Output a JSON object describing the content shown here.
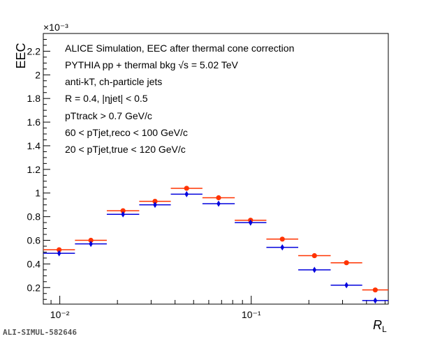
{
  "chart_data": {
    "type": "scatter",
    "x_scale": "log",
    "xlim": [
      0.0082,
      0.52
    ],
    "ylim": [
      6e-05,
      0.00235
    ],
    "exponent_label": "×10⁻³",
    "xlabel": "R",
    "xlabel_sub": "L",
    "ylabel": "EEC",
    "yticks": [
      0.0002,
      0.0004,
      0.0006,
      0.0008,
      0.001,
      0.0012,
      0.0014,
      0.0016,
      0.0018,
      0.002,
      0.0022
    ],
    "ytick_labels": [
      "0.2",
      "0.4",
      "0.6",
      "0.8",
      "1",
      "1.2",
      "1.4",
      "1.6",
      "1.8",
      "2",
      "2.2"
    ],
    "xticks": [
      0.01,
      0.1
    ],
    "xtick_labels": [
      "10⁻²",
      "10⁻¹"
    ],
    "grid": false,
    "bin_edges": [
      0.0082,
      0.012,
      0.0176,
      0.026,
      0.038,
      0.0556,
      0.082,
      0.12,
      0.176,
      0.26,
      0.38,
      0.52
    ],
    "series": [
      {
        "color": "#ff3300",
        "marker": "circle",
        "values": [
          0.00052,
          0.0006,
          0.00085,
          0.00093,
          0.00104,
          0.00096,
          0.00077,
          0.00061,
          0.00047,
          0.00041,
          0.00018
        ]
      },
      {
        "color": "#0000dd",
        "marker": "diamond",
        "values": [
          0.00049,
          0.00057,
          0.00082,
          0.0009,
          0.00099,
          0.00091,
          0.00075,
          0.00054,
          0.00035,
          0.00022,
          9e-05
        ]
      }
    ],
    "annotations": [
      "ALICE Simulation, EEC after thermal cone correction",
      "PYTHIA pp + thermal bkg √s = 5.02 TeV",
      "anti-kT, ch-particle jets",
      "R = 0.4, |ηjet| < 0.5",
      "pTtrack > 0.7 GeV/c",
      "60 < pTjet,reco < 100 GeV/c",
      "20 < pTjet,true < 120 GeV/c"
    ]
  },
  "footer": "ALI-SIMUL-582646"
}
